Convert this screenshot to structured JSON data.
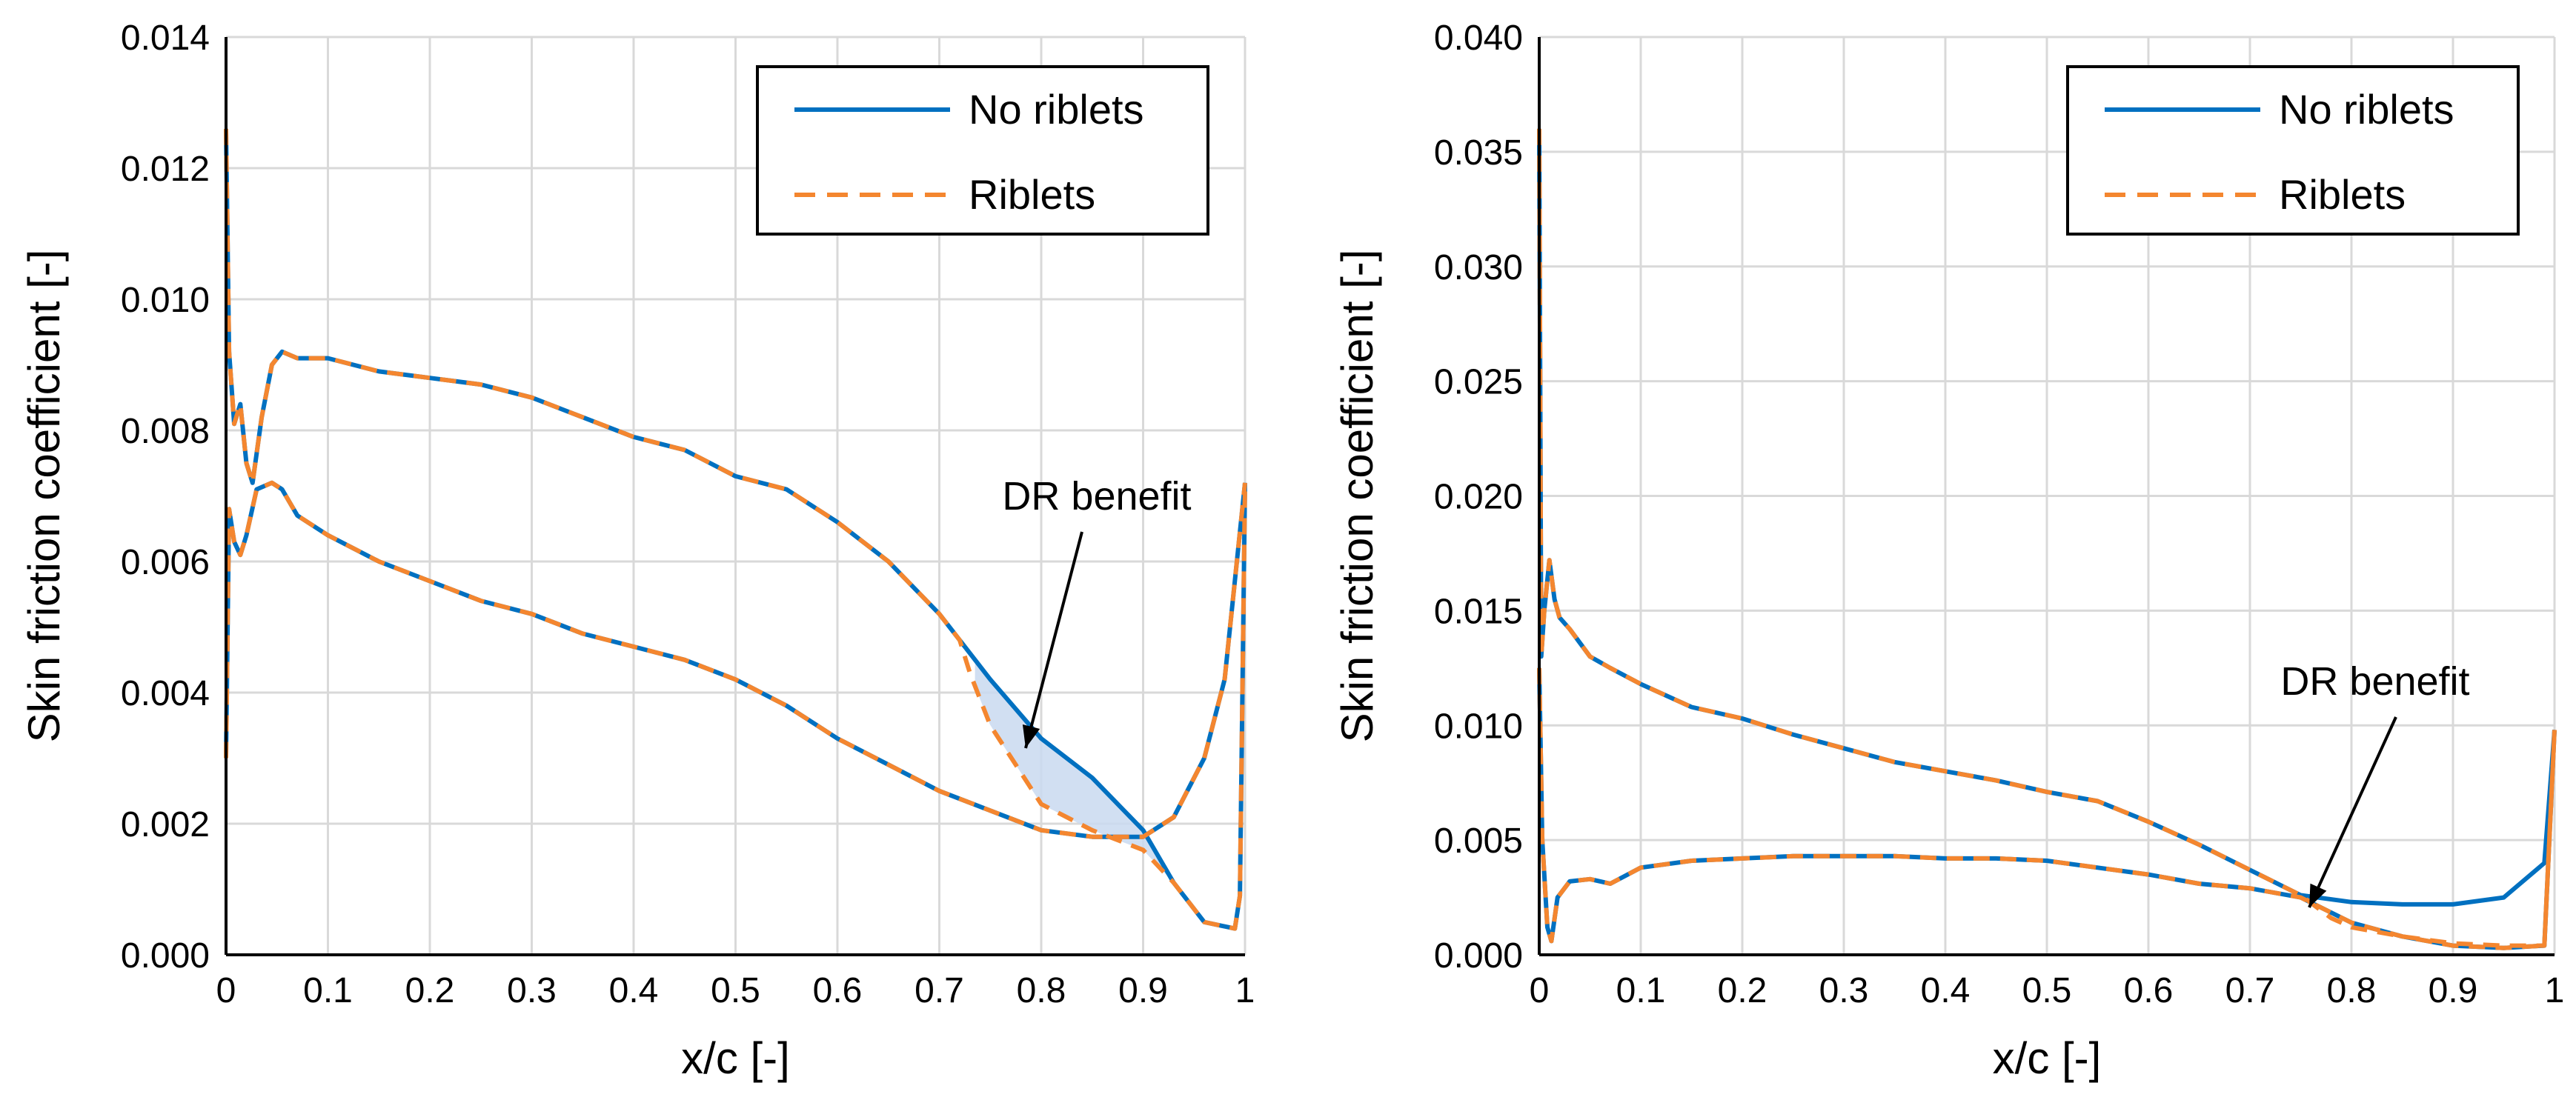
{
  "chart_data": [
    {
      "type": "line",
      "xlabel": "x/c [-]",
      "ylabel": "Skin friction coefficient [-]",
      "xlim": [
        0,
        1
      ],
      "ylim": [
        0,
        0.014
      ],
      "x_ticks": [
        "0",
        "0.1",
        "0.2",
        "0.3",
        "0.4",
        "0.5",
        "0.6",
        "0.7",
        "0.8",
        "0.9",
        "1"
      ],
      "y_ticks": [
        "0.000",
        "0.002",
        "0.004",
        "0.006",
        "0.008",
        "0.010",
        "0.012",
        "0.014"
      ],
      "grid": true,
      "legend_position": "top-right",
      "legend": [
        "No riblets",
        "Riblets"
      ],
      "annotation": "DR benefit",
      "series": [
        {
          "name": "No riblets",
          "color": "#0070C0",
          "style": "solid",
          "upper": {
            "x": [
              0.0,
              0.003,
              0.008,
              0.014,
              0.02,
              0.026,
              0.035,
              0.045,
              0.055,
              0.07,
              0.1,
              0.15,
              0.2,
              0.25,
              0.3,
              0.35,
              0.4,
              0.45,
              0.5,
              0.55,
              0.6,
              0.65,
              0.7,
              0.75,
              0.8,
              0.85,
              0.9,
              0.93,
              0.96,
              0.99,
              0.995,
              1.0
            ],
            "y": [
              0.0126,
              0.0092,
              0.0081,
              0.0084,
              0.0075,
              0.0072,
              0.0082,
              0.009,
              0.0092,
              0.0091,
              0.0091,
              0.0089,
              0.0088,
              0.0087,
              0.0085,
              0.0082,
              0.0079,
              0.0077,
              0.0073,
              0.0071,
              0.0066,
              0.006,
              0.0052,
              0.0042,
              0.0033,
              0.0027,
              0.0019,
              0.0011,
              0.0005,
              0.0004,
              0.0009,
              0.0072
            ]
          },
          "lower": {
            "x": [
              0.0,
              0.003,
              0.008,
              0.014,
              0.02,
              0.03,
              0.045,
              0.055,
              0.07,
              0.1,
              0.15,
              0.2,
              0.25,
              0.3,
              0.35,
              0.4,
              0.45,
              0.5,
              0.55,
              0.6,
              0.65,
              0.7,
              0.75,
              0.8,
              0.85,
              0.9,
              0.93,
              0.96,
              0.98,
              1.0
            ],
            "y": [
              0.003,
              0.0068,
              0.0063,
              0.0061,
              0.0064,
              0.0071,
              0.0072,
              0.0071,
              0.0067,
              0.0064,
              0.006,
              0.0057,
              0.0054,
              0.0052,
              0.0049,
              0.0047,
              0.0045,
              0.0042,
              0.0038,
              0.0033,
              0.0029,
              0.0025,
              0.0022,
              0.0019,
              0.0018,
              0.0018,
              0.0021,
              0.003,
              0.0042,
              0.0072
            ]
          }
        },
        {
          "name": "Riblets",
          "color": "#F4862F",
          "style": "dashed",
          "upper": {
            "x": [
              0.0,
              0.003,
              0.008,
              0.014,
              0.02,
              0.026,
              0.035,
              0.045,
              0.055,
              0.07,
              0.1,
              0.15,
              0.2,
              0.25,
              0.3,
              0.35,
              0.4,
              0.45,
              0.5,
              0.55,
              0.6,
              0.65,
              0.7,
              0.72,
              0.73,
              0.75,
              0.8,
              0.85,
              0.9,
              0.93,
              0.96,
              0.99,
              0.995,
              1.0
            ],
            "y": [
              0.0126,
              0.0092,
              0.0081,
              0.0084,
              0.0075,
              0.0072,
              0.0082,
              0.009,
              0.0092,
              0.0091,
              0.0091,
              0.0089,
              0.0088,
              0.0087,
              0.0085,
              0.0082,
              0.0079,
              0.0077,
              0.0073,
              0.0071,
              0.0066,
              0.006,
              0.0052,
              0.0048,
              0.0043,
              0.0035,
              0.0023,
              0.0019,
              0.0016,
              0.0011,
              0.0005,
              0.0004,
              0.0009,
              0.0072
            ]
          },
          "lower": {
            "x": [
              0.0,
              0.003,
              0.008,
              0.014,
              0.02,
              0.03,
              0.045,
              0.055,
              0.07,
              0.1,
              0.15,
              0.2,
              0.25,
              0.3,
              0.35,
              0.4,
              0.45,
              0.5,
              0.55,
              0.6,
              0.65,
              0.7,
              0.75,
              0.8,
              0.85,
              0.9,
              0.93,
              0.96,
              0.98,
              1.0
            ],
            "y": [
              0.003,
              0.0068,
              0.0063,
              0.0061,
              0.0064,
              0.0071,
              0.0072,
              0.0071,
              0.0067,
              0.0064,
              0.006,
              0.0057,
              0.0054,
              0.0052,
              0.0049,
              0.0047,
              0.0045,
              0.0042,
              0.0038,
              0.0033,
              0.0029,
              0.0025,
              0.0022,
              0.0019,
              0.0018,
              0.0018,
              0.0021,
              0.003,
              0.0042,
              0.0072
            ]
          }
        }
      ]
    },
    {
      "type": "line",
      "xlabel": "x/c [-]",
      "ylabel": "Skin friction coefficient [-]",
      "xlim": [
        0,
        1
      ],
      "ylim": [
        0,
        0.04
      ],
      "x_ticks": [
        "0",
        "0.1",
        "0.2",
        "0.3",
        "0.4",
        "0.5",
        "0.6",
        "0.7",
        "0.8",
        "0.9",
        "1"
      ],
      "y_ticks": [
        "0.000",
        "0.005",
        "0.010",
        "0.015",
        "0.020",
        "0.025",
        "0.030",
        "0.035",
        "0.040"
      ],
      "grid": true,
      "legend_position": "top-right",
      "legend": [
        "No riblets",
        "Riblets"
      ],
      "annotation": "DR benefit",
      "series": [
        {
          "name": "No riblets",
          "color": "#0070C0",
          "style": "solid",
          "upper": {
            "x": [
              0.0,
              0.002,
              0.005,
              0.01,
              0.015,
              0.02,
              0.03,
              0.05,
              0.07,
              0.1,
              0.15,
              0.2,
              0.25,
              0.3,
              0.35,
              0.4,
              0.45,
              0.5,
              0.55,
              0.6,
              0.65,
              0.7,
              0.75,
              0.8,
              0.85,
              0.9,
              0.95,
              0.99,
              1.0
            ],
            "y": [
              0.036,
              0.013,
              0.015,
              0.0172,
              0.0155,
              0.0147,
              0.0142,
              0.013,
              0.0125,
              0.0118,
              0.0108,
              0.0103,
              0.0096,
              0.009,
              0.0084,
              0.008,
              0.0076,
              0.0071,
              0.0067,
              0.0058,
              0.0048,
              0.0037,
              0.0026,
              0.0023,
              0.0022,
              0.0022,
              0.0025,
              0.004,
              0.0098
            ]
          },
          "lower": {
            "x": [
              0.0,
              0.003,
              0.008,
              0.012,
              0.018,
              0.03,
              0.05,
              0.07,
              0.1,
              0.15,
              0.2,
              0.25,
              0.3,
              0.35,
              0.4,
              0.45,
              0.5,
              0.55,
              0.6,
              0.65,
              0.7,
              0.75,
              0.8,
              0.85,
              0.9,
              0.95,
              0.99,
              1.0
            ],
            "y": [
              0.0125,
              0.005,
              0.0012,
              0.0006,
              0.0025,
              0.0032,
              0.0033,
              0.0031,
              0.0038,
              0.0041,
              0.0042,
              0.0043,
              0.0043,
              0.0043,
              0.0042,
              0.0042,
              0.0041,
              0.0038,
              0.0035,
              0.0031,
              0.0029,
              0.0025,
              0.0014,
              0.0008,
              0.0004,
              0.0003,
              0.0004,
              0.0098
            ]
          }
        },
        {
          "name": "Riblets",
          "color": "#F4862F",
          "style": "dashed",
          "upper": {
            "x": [
              0.0,
              0.002,
              0.005,
              0.01,
              0.015,
              0.02,
              0.03,
              0.05,
              0.07,
              0.1,
              0.15,
              0.2,
              0.25,
              0.3,
              0.35,
              0.4,
              0.45,
              0.5,
              0.55,
              0.6,
              0.65,
              0.7,
              0.75,
              0.78,
              0.8,
              0.85,
              0.9,
              0.95,
              0.99,
              1.0
            ],
            "y": [
              0.036,
              0.013,
              0.015,
              0.0172,
              0.0155,
              0.0147,
              0.0142,
              0.013,
              0.0125,
              0.0118,
              0.0108,
              0.0103,
              0.0096,
              0.009,
              0.0084,
              0.008,
              0.0076,
              0.0071,
              0.0067,
              0.0058,
              0.0048,
              0.0037,
              0.0026,
              0.0016,
              0.0012,
              0.0008,
              0.0005,
              0.0004,
              0.0004,
              0.0098
            ]
          },
          "lower": {
            "x": [
              0.0,
              0.003,
              0.008,
              0.012,
              0.018,
              0.03,
              0.05,
              0.07,
              0.1,
              0.15,
              0.2,
              0.25,
              0.3,
              0.35,
              0.4,
              0.45,
              0.5,
              0.55,
              0.6,
              0.65,
              0.7,
              0.75,
              0.8,
              0.85,
              0.9,
              0.95,
              0.99,
              1.0
            ],
            "y": [
              0.0125,
              0.005,
              0.0012,
              0.0006,
              0.0025,
              0.0032,
              0.0033,
              0.0031,
              0.0038,
              0.0041,
              0.0042,
              0.0043,
              0.0043,
              0.0043,
              0.0042,
              0.0042,
              0.0041,
              0.0038,
              0.0035,
              0.0031,
              0.0029,
              0.0025,
              0.0014,
              0.0008,
              0.0004,
              0.0003,
              0.0004,
              0.0098
            ]
          }
        }
      ]
    }
  ]
}
